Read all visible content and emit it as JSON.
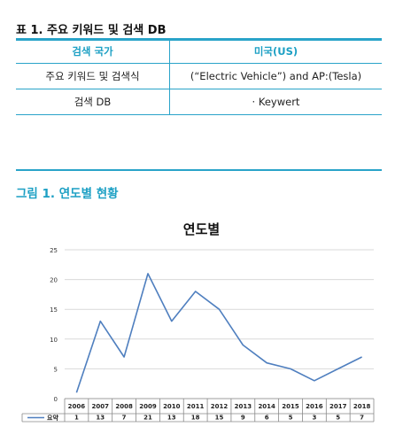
{
  "table": {
    "title": "표 1. 주요 키워드 및 검색 DB",
    "headers": [
      "검색 국가",
      "미국(US)"
    ],
    "rows": [
      [
        "주요 키워드 및 검색식",
        "(“Electric Vehicle”) and AP:(Tesla)"
      ],
      [
        "검색 DB",
        "· Keywert"
      ]
    ]
  },
  "figure": {
    "title": "그림 1. 연도별 현황"
  },
  "colors": {
    "accent": "#29a3c9",
    "line": "#4f7fbf"
  },
  "chart_data": {
    "type": "line",
    "title": "연도별",
    "categories": [
      "2006",
      "2007",
      "2008",
      "2009",
      "2010",
      "2011",
      "2012",
      "2013",
      "2014",
      "2015",
      "2016",
      "2017",
      "2018"
    ],
    "series": [
      {
        "name": "요약",
        "values": [
          1,
          13,
          7,
          21,
          13,
          18,
          15,
          9,
          6,
          5,
          3,
          5,
          7
        ]
      }
    ],
    "yticks": [
      "0",
      "5",
      "10",
      "15",
      "20",
      "25"
    ],
    "ylim": [
      0,
      25
    ],
    "grid": true,
    "data_table": true
  }
}
